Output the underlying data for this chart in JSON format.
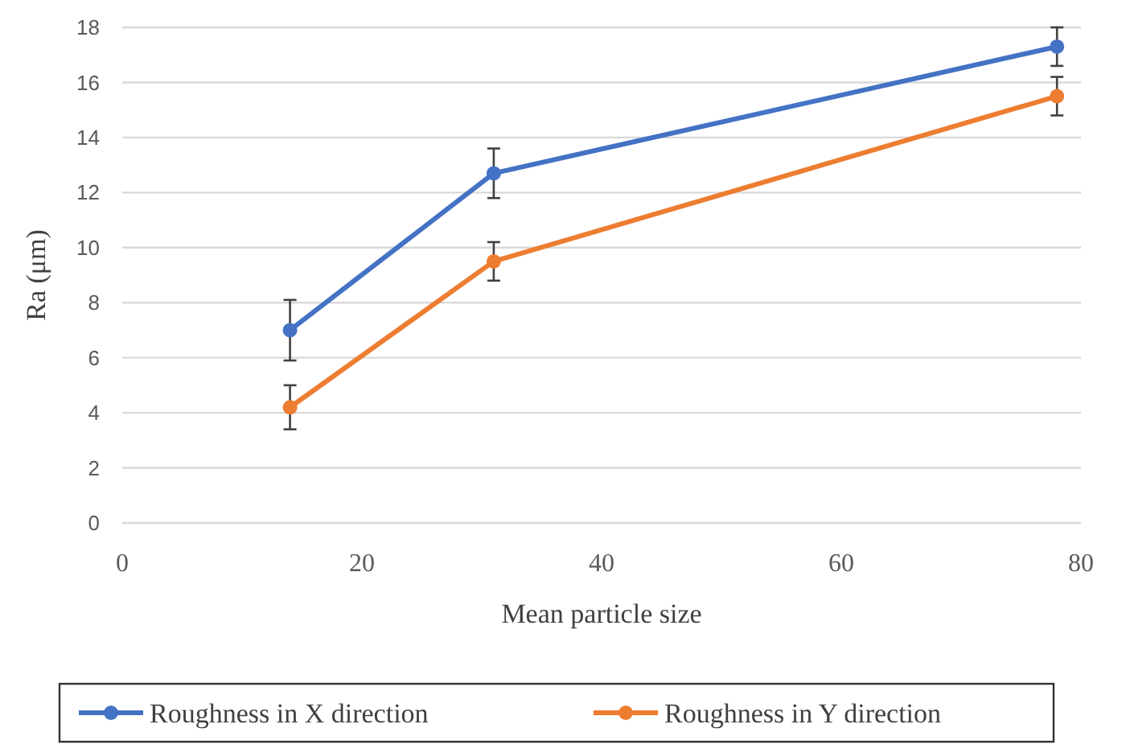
{
  "chart_data": {
    "type": "line",
    "xlabel": "Mean particle  size",
    "ylabel": "Ra (μm)",
    "xlim": [
      0,
      80
    ],
    "xticks": [
      0,
      20,
      40,
      60,
      80
    ],
    "ylim": [
      0,
      18
    ],
    "yticks": [
      0,
      2,
      4,
      6,
      8,
      10,
      12,
      14,
      16,
      18
    ],
    "grid": "y",
    "legend": "bottom",
    "marker": "circle",
    "line_style": "solid",
    "series": [
      {
        "name": "Roughness in X direction",
        "color": "#4472c4",
        "x": [
          14,
          31,
          78
        ],
        "values": [
          7.0,
          12.7,
          17.3
        ],
        "errors": [
          1.1,
          0.9,
          0.7
        ]
      },
      {
        "name": "Roughness in Y direction",
        "color": "#ed7d31",
        "x": [
          14,
          31,
          78
        ],
        "values": [
          4.2,
          9.5,
          15.5
        ],
        "errors": [
          0.8,
          0.7,
          0.7
        ]
      }
    ]
  }
}
